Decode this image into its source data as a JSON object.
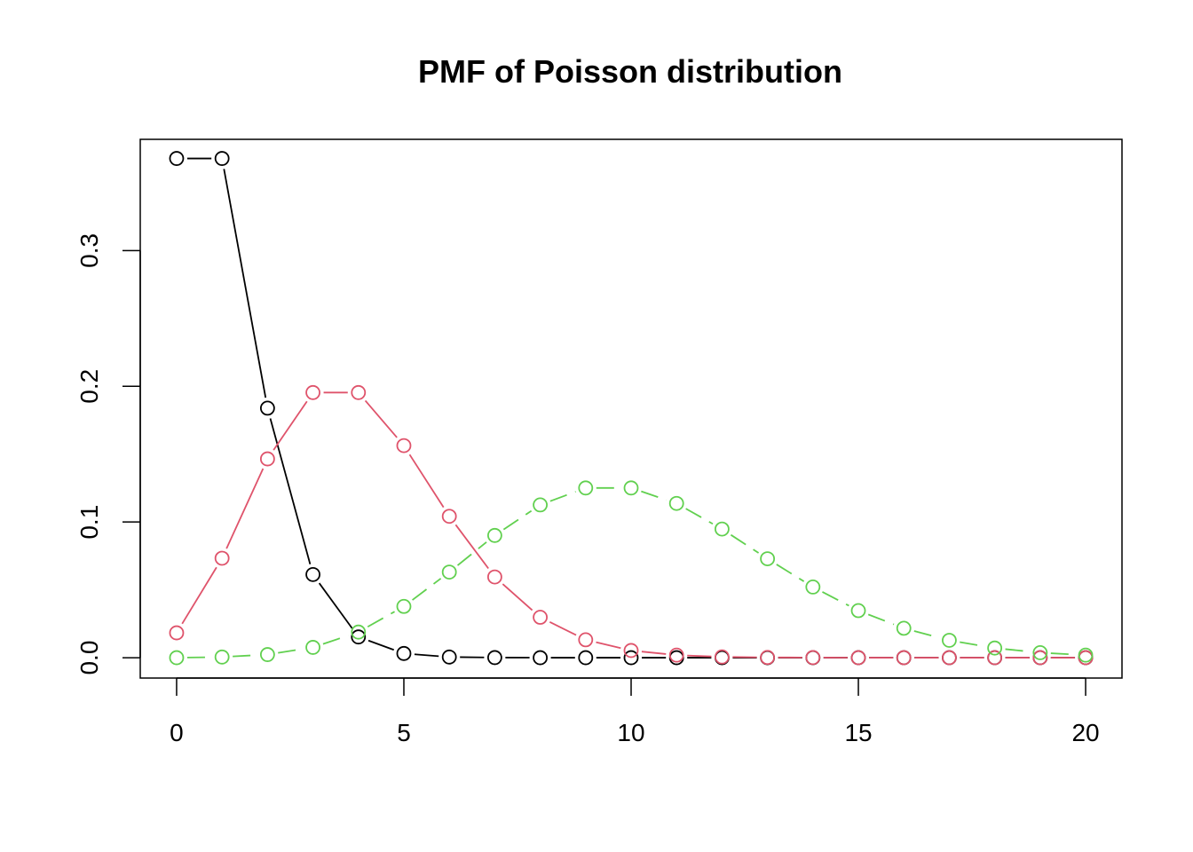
{
  "chart_data": {
    "type": "line",
    "title": "PMF of Poisson distribution",
    "xlabel": "",
    "ylabel": "",
    "xlim": [
      -0.8,
      20.8
    ],
    "ylim": [
      -0.015,
      0.382
    ],
    "x_ticks": [
      0,
      5,
      10,
      15,
      20
    ],
    "x_tick_labels": [
      "0",
      "5",
      "10",
      "15",
      "20"
    ],
    "y_ticks": [
      0.0,
      0.1,
      0.2,
      0.3
    ],
    "y_tick_labels": [
      "0.0",
      "0.1",
      "0.2",
      "0.3"
    ],
    "grid": false,
    "x": [
      0,
      1,
      2,
      3,
      4,
      5,
      6,
      7,
      8,
      9,
      10,
      11,
      12,
      13,
      14,
      15,
      16,
      17,
      18,
      19,
      20
    ],
    "series": [
      {
        "color": "#000000",
        "values": [
          0.3679,
          0.3679,
          0.1839,
          0.0613,
          0.0153,
          0.0031,
          0.0005,
          0.0001,
          0.0,
          0.0,
          0.0,
          0.0,
          0.0,
          0.0,
          0.0,
          0.0,
          0.0,
          0.0,
          0.0,
          0.0,
          0.0
        ]
      },
      {
        "color": "#DF536B",
        "values": [
          0.0183,
          0.0733,
          0.1465,
          0.1954,
          0.1954,
          0.1563,
          0.1042,
          0.0595,
          0.0298,
          0.0132,
          0.0053,
          0.0019,
          0.0006,
          0.0002,
          0.0001,
          0.0,
          0.0,
          0.0,
          0.0,
          0.0,
          0.0
        ]
      },
      {
        "color": "#61D04F",
        "values": [
          0.0,
          0.0005,
          0.0023,
          0.0076,
          0.0189,
          0.0378,
          0.0631,
          0.0901,
          0.1126,
          0.1251,
          0.1251,
          0.1137,
          0.0948,
          0.0729,
          0.0521,
          0.0347,
          0.0217,
          0.0128,
          0.0071,
          0.0037,
          0.0019
        ]
      }
    ]
  }
}
